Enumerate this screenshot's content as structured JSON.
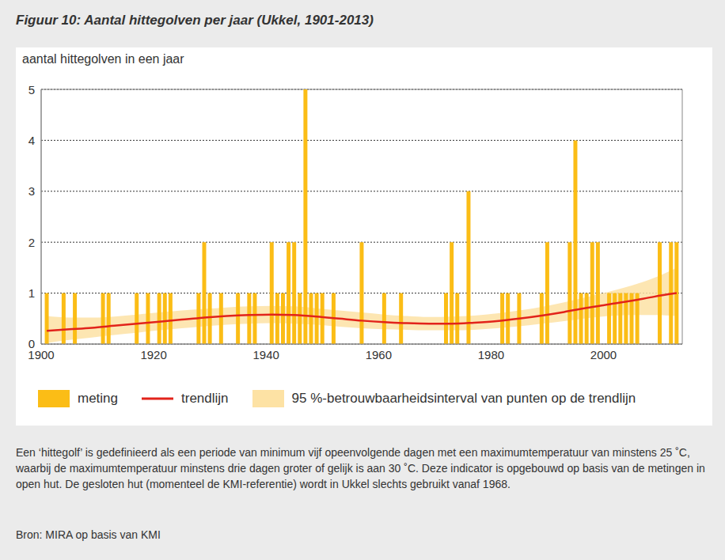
{
  "chart_data": {
    "type": "bar",
    "title": "Figuur 10: Aantal hittegolven per jaar (Ukkel, 1901-2013)",
    "y_label": "aantal hittegolven in een jaar",
    "x": [
      1901,
      1902,
      1903,
      1904,
      1905,
      1906,
      1907,
      1908,
      1909,
      1910,
      1911,
      1912,
      1913,
      1914,
      1915,
      1916,
      1917,
      1918,
      1919,
      1920,
      1921,
      1922,
      1923,
      1924,
      1925,
      1926,
      1927,
      1928,
      1929,
      1930,
      1931,
      1932,
      1933,
      1934,
      1935,
      1936,
      1937,
      1938,
      1939,
      1940,
      1941,
      1942,
      1943,
      1944,
      1945,
      1946,
      1947,
      1948,
      1949,
      1950,
      1951,
      1952,
      1953,
      1954,
      1955,
      1956,
      1957,
      1958,
      1959,
      1960,
      1961,
      1962,
      1963,
      1964,
      1965,
      1966,
      1967,
      1968,
      1969,
      1970,
      1971,
      1972,
      1973,
      1974,
      1975,
      1976,
      1977,
      1978,
      1979,
      1980,
      1981,
      1982,
      1983,
      1984,
      1985,
      1986,
      1987,
      1988,
      1989,
      1990,
      1991,
      1992,
      1993,
      1994,
      1995,
      1996,
      1997,
      1998,
      1999,
      2000,
      2001,
      2002,
      2003,
      2004,
      2005,
      2006,
      2007,
      2008,
      2009,
      2010,
      2011,
      2012,
      2013
    ],
    "series": [
      {
        "name": "meting",
        "type": "bar",
        "color": "#fbbd16",
        "values": [
          1,
          0,
          0,
          1,
          0,
          1,
          0,
          0,
          0,
          0,
          1,
          1,
          0,
          0,
          0,
          0,
          1,
          0,
          1,
          0,
          1,
          1,
          1,
          0,
          0,
          0,
          0,
          1,
          2,
          1,
          0,
          1,
          0,
          0,
          1,
          0,
          1,
          1,
          0,
          0,
          2,
          1,
          1,
          2,
          2,
          1,
          5,
          1,
          1,
          1,
          0,
          1,
          0,
          0,
          0,
          0,
          2,
          0,
          0,
          0,
          1,
          0,
          0,
          1,
          0,
          0,
          0,
          0,
          0,
          0,
          0,
          1,
          2,
          1,
          0,
          3,
          0,
          0,
          0,
          0,
          0,
          1,
          1,
          0,
          1,
          0,
          0,
          0,
          1,
          2,
          0,
          0,
          0,
          2,
          4,
          1,
          1,
          2,
          2,
          0,
          1,
          1,
          1,
          1,
          1,
          1,
          0,
          0,
          0,
          2,
          0,
          2,
          2
        ]
      },
      {
        "name": "trendlijn",
        "type": "line",
        "color": "#e2231a",
        "x": [
          1901,
          1905,
          1909,
          1913,
          1917,
          1921,
          1925,
          1929,
          1933,
          1937,
          1941,
          1945,
          1949,
          1953,
          1957,
          1961,
          1965,
          1969,
          1973,
          1977,
          1981,
          1985,
          1989,
          1993,
          1997,
          2001,
          2005,
          2009,
          2013
        ],
        "values": [
          0.26,
          0.29,
          0.32,
          0.36,
          0.4,
          0.44,
          0.48,
          0.52,
          0.55,
          0.57,
          0.58,
          0.57,
          0.54,
          0.5,
          0.46,
          0.43,
          0.41,
          0.4,
          0.4,
          0.42,
          0.45,
          0.5,
          0.56,
          0.63,
          0.71,
          0.78,
          0.85,
          0.93,
          1.0
        ]
      },
      {
        "name": "95 %-betrouwbaarheidsinterval van punten op de trendlijn",
        "type": "area",
        "color": "#fde2a4",
        "x": [
          1901,
          1905,
          1909,
          1913,
          1917,
          1921,
          1925,
          1929,
          1933,
          1937,
          1941,
          1945,
          1949,
          1953,
          1957,
          1961,
          1965,
          1969,
          1973,
          1977,
          1981,
          1985,
          1989,
          1993,
          1997,
          2001,
          2005,
          2009,
          2013
        ],
        "lower": [
          0.02,
          0.08,
          0.13,
          0.18,
          0.22,
          0.27,
          0.31,
          0.35,
          0.38,
          0.4,
          0.41,
          0.4,
          0.38,
          0.34,
          0.31,
          0.29,
          0.28,
          0.27,
          0.27,
          0.28,
          0.31,
          0.35,
          0.4,
          0.45,
          0.51,
          0.55,
          0.57,
          0.57,
          0.55
        ],
        "upper": [
          0.55,
          0.52,
          0.52,
          0.54,
          0.58,
          0.62,
          0.66,
          0.69,
          0.72,
          0.74,
          0.75,
          0.74,
          0.7,
          0.66,
          0.62,
          0.58,
          0.55,
          0.53,
          0.54,
          0.56,
          0.6,
          0.66,
          0.73,
          0.82,
          0.92,
          1.03,
          1.15,
          1.3,
          1.5
        ]
      }
    ],
    "xlim": [
      1900,
      2014
    ],
    "xticks": [
      1900,
      1920,
      1940,
      1960,
      1980,
      2000
    ],
    "ylim": [
      0,
      5
    ],
    "yticks": [
      0,
      1,
      2,
      3,
      4,
      5
    ],
    "grid": true,
    "annotations": [
      "Een ‘hittegolf’ is gedefinieerd als een periode van minimum vijf opeenvolgende dagen met een maximumtemperatuur van minstens 25 ˚C, waarbij de maximumtemperatuur minstens drie dagen groter of gelijk is aan 30 ˚C. Deze indicator is opgebouwd op basis van de metingen in open hut. De gesloten hut (momenteel de KMI-referentie) wordt in Ukkel slechts gebruikt vanaf 1968.",
      "Bron: MIRA op basis van KMI"
    ]
  }
}
